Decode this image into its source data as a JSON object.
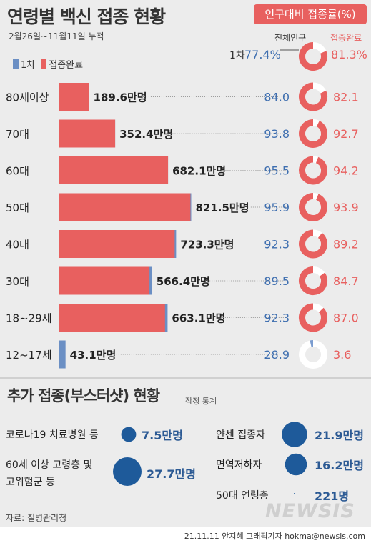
{
  "header": {
    "title": "연령별 백신 접종 현황",
    "badge": "인구대비 접종률(%)",
    "subtitle": "2월26일~11월11일 누적"
  },
  "legend": {
    "first_dose": "1차",
    "fully_vaccinated": "접종완료"
  },
  "columns": {
    "total_population": "전체인구",
    "fully_vaccinated": "접종완료"
  },
  "overall": {
    "label": "1차",
    "first_dose_rate": "77.4%",
    "fully_vaccinated_rate": "81.3%",
    "first_dose_value": 77.4,
    "full_value": 81.3
  },
  "colors": {
    "first_dose": "#6b8fc4",
    "fully_vaccinated": "#e8605f",
    "bubble": "#1e5a9a",
    "background": "#ececec"
  },
  "chart_data": {
    "type": "bar",
    "orientation": "horizontal",
    "title": "연령별 백신 접종 현황",
    "unit": "만명",
    "categories": [
      "80세이상",
      "70대",
      "60대",
      "50대",
      "40대",
      "30대",
      "18~29세",
      "12~17세"
    ],
    "series": [
      {
        "name": "접종완료",
        "values": [
          189.6,
          352.4,
          682.1,
          821.5,
          723.3,
          566.4,
          663.1,
          0
        ]
      },
      {
        "name": "1차",
        "values": [
          189.6,
          352.4,
          682.1,
          826.5,
          732.4,
          582.7,
          679.2,
          43.1
        ]
      }
    ],
    "value_labels": [
      "189.6만명",
      "352.4만명",
      "682.1만명",
      "821.5만명",
      "723.3만명",
      "566.4만명",
      "663.1만명",
      "43.1만명"
    ],
    "first_dose_rate_labels": [
      "84.0",
      "93.8",
      "95.5",
      "95.9",
      "92.3",
      "89.5",
      "92.3",
      "28.9"
    ],
    "full_rate_labels": [
      "82.1",
      "92.7",
      "94.2",
      "93.9",
      "89.2",
      "84.7",
      "87.0",
      "3.6"
    ],
    "full_rate_values": [
      82.1,
      92.7,
      94.2,
      93.9,
      89.2,
      84.7,
      87.0,
      3.6
    ],
    "first_dose_rate_values": [
      84.0,
      93.8,
      95.5,
      95.9,
      92.3,
      89.5,
      92.3,
      28.9
    ],
    "xlim": [
      0,
      860
    ]
  },
  "booster": {
    "title": "추가 접종(부스터샷) 현황",
    "note": "잠정 통계",
    "items": [
      {
        "label": "코로나19 치료병원 등",
        "value": "7.5만명",
        "amount": 7.5
      },
      {
        "label": "얀센 접종자",
        "value": "21.9만명",
        "amount": 21.9
      },
      {
        "label": "60세 이상 고령층 및",
        "label2": "고위험군 등",
        "value": "27.7만명",
        "amount": 27.7
      },
      {
        "label": "면역저하자",
        "value": "16.2만명",
        "amount": 16.2
      },
      {
        "label": "50대 연령층",
        "value": "221명",
        "amount": 0.0221
      }
    ]
  },
  "footer": {
    "source": "자료: 질병관리청",
    "credit": "21.11.11 안지혜 그래픽기자 hokma@newsis.com",
    "logo": "NEWSIS"
  }
}
